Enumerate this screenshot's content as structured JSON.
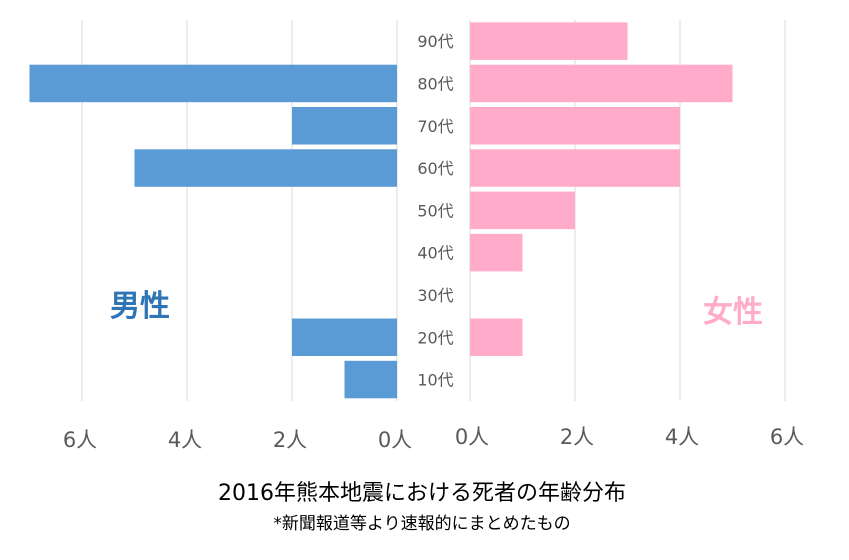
{
  "chart_data": {
    "type": "bar",
    "orientation": "horizontal",
    "layout": "population-pyramid",
    "title": "2016年熊本地震における死者の年齢分布",
    "subtitle": "*新聞報道等より速報的にまとめたもの",
    "categories": [
      "90代",
      "80代",
      "70代",
      "60代",
      "50代",
      "40代",
      "30代",
      "20代",
      "10代"
    ],
    "series": [
      {
        "name": "男性",
        "side": "left",
        "color": "#5b9bd5",
        "values": [
          0,
          7,
          2,
          5,
          0,
          0,
          0,
          2,
          1
        ]
      },
      {
        "name": "女性",
        "side": "right",
        "color": "#ffabc9",
        "values": [
          3,
          5,
          4,
          4,
          2,
          1,
          0,
          1,
          0
        ]
      }
    ],
    "xlim": [
      0,
      7
    ],
    "tick_values": [
      0,
      2,
      4,
      6
    ],
    "tick_suffix": "人",
    "grid": true,
    "legend_placement": "inline-labels",
    "label_colors": {
      "男性": "#2e75b6",
      "女性": "#ffabc9"
    }
  }
}
